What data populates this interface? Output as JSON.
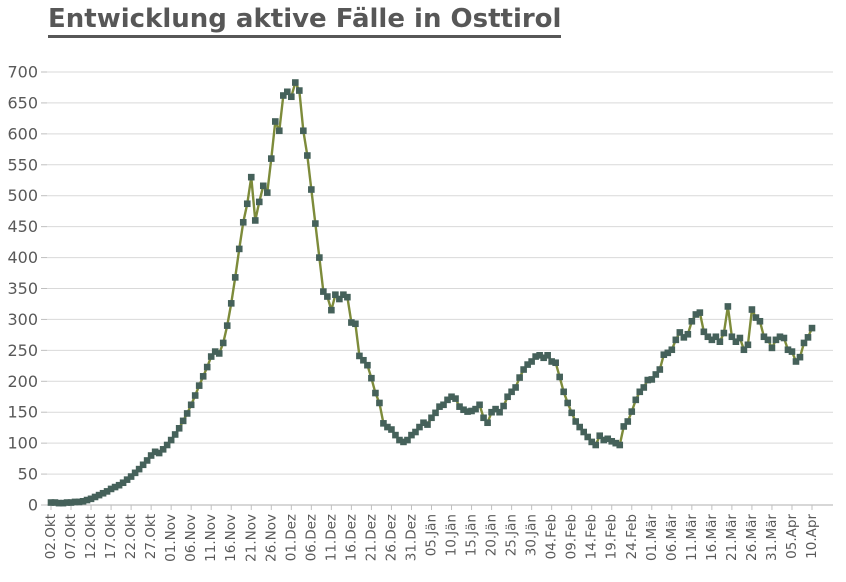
{
  "title": "Entwicklung aktive Fälle in Osttirol",
  "colors": {
    "line": "#7d8b3a",
    "marker": "#45615a",
    "grid": "#d9d9d9",
    "axis": "#bfbfbf",
    "tick_label": "#595959",
    "title": "#575757"
  },
  "chart_data": {
    "type": "line",
    "title": "Entwicklung aktive Fälle in Osttirol",
    "xlabel": "",
    "ylabel": "",
    "ylim": [
      0,
      700
    ],
    "ytick_step": 50,
    "y_ticks": [
      0,
      50,
      100,
      150,
      200,
      250,
      300,
      350,
      400,
      450,
      500,
      550,
      600,
      650,
      700
    ],
    "grid": "horizontal",
    "legend": "none",
    "marker": "square",
    "points_per_label": 5,
    "x_tick_labels": [
      "02.Okt",
      "07.Okt",
      "12.Okt",
      "17.Okt",
      "22.Okt",
      "27.Okt",
      "01.Nov",
      "06.Nov",
      "11.Nov",
      "16.Nov",
      "21.Nov",
      "26.Nov",
      "01.Dez",
      "06.Dez",
      "11.Dez",
      "16.Dez",
      "21.Dez",
      "26.Dez",
      "31.Dez",
      "05.Jän",
      "10.Jän",
      "15.Jän",
      "20.Jän",
      "25.Jän",
      "30.Jän",
      "04.Feb",
      "09.Feb",
      "14.Feb",
      "19.Feb",
      "24.Feb",
      "01.Mär",
      "06.Mär",
      "11.Mär",
      "16.Mär",
      "21.Mär",
      "26.Mär",
      "31.Mär",
      "05.Apr",
      "10.Apr"
    ],
    "values": [
      4,
      4,
      3,
      3,
      4,
      4,
      5,
      5,
      6,
      8,
      10,
      13,
      16,
      19,
      22,
      26,
      29,
      32,
      36,
      41,
      46,
      52,
      58,
      65,
      72,
      80,
      86,
      84,
      90,
      97,
      105,
      114,
      124,
      136,
      148,
      162,
      177,
      193,
      208,
      223,
      240,
      248,
      245,
      262,
      290,
      326,
      368,
      414,
      457,
      487,
      530,
      460,
      490,
      516,
      505,
      560,
      620,
      605,
      662,
      668,
      660,
      683,
      670,
      605,
      565,
      510,
      455,
      400,
      345,
      337,
      315,
      340,
      333,
      340,
      336,
      295,
      293,
      241,
      234,
      226,
      205,
      181,
      165,
      132,
      126,
      122,
      113,
      105,
      102,
      105,
      113,
      118,
      126,
      133,
      130,
      141,
      149,
      159,
      162,
      170,
      175,
      172,
      159,
      154,
      151,
      152,
      155,
      162,
      141,
      133,
      150,
      155,
      150,
      160,
      175,
      183,
      190,
      206,
      219,
      227,
      232,
      240,
      242,
      238,
      242,
      232,
      230,
      207,
      183,
      165,
      149,
      135,
      126,
      118,
      110,
      102,
      97,
      112,
      105,
      107,
      103,
      100,
      97,
      127,
      135,
      151,
      170,
      183,
      190,
      202,
      203,
      211,
      219,
      243,
      246,
      251,
      267,
      279,
      271,
      276,
      297,
      308,
      311,
      280,
      272,
      267,
      272,
      264,
      278,
      321,
      272,
      264,
      270,
      251,
      259,
      316,
      303,
      297,
      272,
      267,
      254,
      267,
      272,
      270,
      251,
      248,
      232,
      239,
      262,
      271,
      286
    ]
  }
}
